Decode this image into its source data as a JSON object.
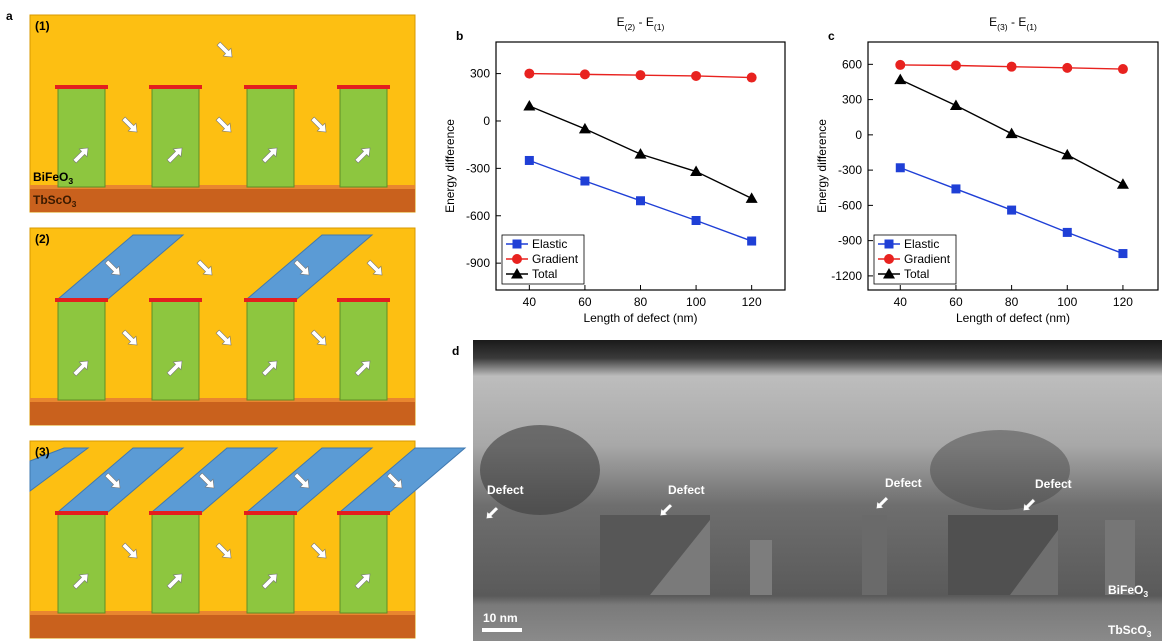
{
  "panel_labels": [
    "a",
    "b",
    "c",
    "d"
  ],
  "diagram": {
    "steps": [
      "(1)",
      "(2)",
      "(3)"
    ],
    "film": [
      "BiFeO",
      "3"
    ],
    "substrate": [
      "TbScO",
      "3"
    ]
  },
  "micrograph": {
    "defect_labels": [
      "Defect",
      "Defect",
      "Defect",
      "Defect"
    ],
    "film": [
      "BiFeO",
      "3"
    ],
    "substrate": [
      "TbScO",
      "3"
    ],
    "scale_bar": "10 nm"
  },
  "chart_data": [
    {
      "type": "line",
      "title": [
        "E",
        "(2)",
        " - E",
        "(1)"
      ],
      "x_label": "Length of defect (nm)",
      "y_label": "Energy difference",
      "x": [
        40,
        60,
        80,
        100,
        120
      ],
      "series": [
        {
          "name": "Elastic",
          "color": "#1f3fd6",
          "marker": "square",
          "values": [
            -250,
            -380,
            -505,
            -630,
            -760
          ]
        },
        {
          "name": "Gradient",
          "color": "#e8221f",
          "marker": "circle",
          "values": [
            300,
            295,
            290,
            285,
            275
          ]
        },
        {
          "name": "Total",
          "color": "#000000",
          "marker": "triangle",
          "values": [
            95,
            -50,
            -210,
            -320,
            -490
          ]
        }
      ],
      "xlim": [
        28,
        132
      ],
      "xticks": [
        40,
        60,
        80,
        100,
        120
      ],
      "ylim": [
        -1070,
        500
      ],
      "yticks": [
        -900,
        -600,
        -300,
        0,
        300
      ],
      "legend": "lower left"
    },
    {
      "type": "line",
      "title": [
        "E",
        "(3)",
        " - E",
        "(1)"
      ],
      "x_label": "Length of defect (nm)",
      "y_label": "Energy difference",
      "x": [
        40,
        60,
        80,
        100,
        120
      ],
      "series": [
        {
          "name": "Elastic",
          "color": "#1f3fd6",
          "marker": "square",
          "values": [
            -280,
            -460,
            -640,
            -830,
            -1010
          ]
        },
        {
          "name": "Gradient",
          "color": "#e8221f",
          "marker": "circle",
          "values": [
            595,
            590,
            580,
            570,
            560
          ]
        },
        {
          "name": "Total",
          "color": "#000000",
          "marker": "triangle",
          "values": [
            470,
            250,
            10,
            -170,
            -420
          ]
        }
      ],
      "xlim": [
        28.4,
        132.6
      ],
      "xticks": [
        40,
        60,
        80,
        100,
        120
      ],
      "ylim": [
        -1320,
        790
      ],
      "yticks": [
        -1200,
        -900,
        -600,
        -300,
        0,
        300,
        600
      ],
      "legend": "lower left"
    }
  ]
}
